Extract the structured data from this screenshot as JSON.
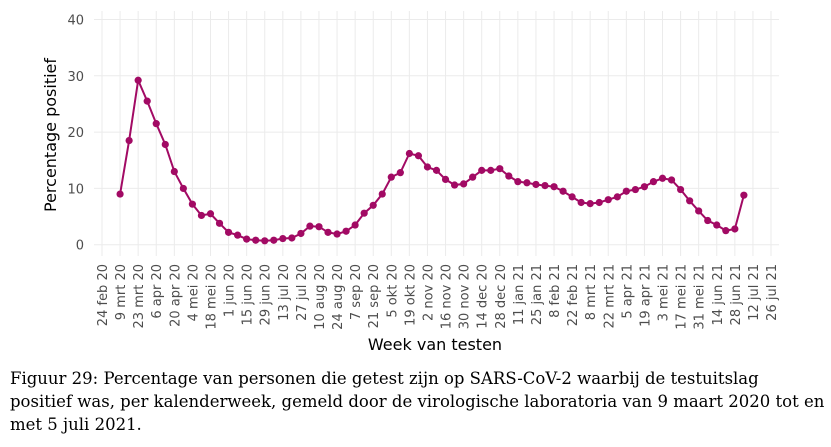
{
  "chart_data": {
    "type": "line",
    "xlabel": "Week van testen",
    "ylabel": "Percentage positief",
    "caption": [
      "Figuur 29: Percentage van personen die getest zijn op SARS-CoV-2 waarbij de testuitslag",
      "positief was, per kalenderweek, gemeld door de virologische laboratoria van 9 maart 2020 tot en",
      "met 5 juli 2021."
    ],
    "categories": [
      "24 feb 20",
      null,
      "9 mrt 20",
      null,
      "23 mrt 20",
      null,
      "6 apr 20",
      null,
      "20 apr 20",
      null,
      "4 mei 20",
      null,
      "18 mei 20",
      null,
      "1 jun 20",
      null,
      "15 jun 20",
      null,
      "29 jun 20",
      null,
      "13 jul 20",
      null,
      "27 jul 20",
      null,
      "10 aug 20",
      null,
      "24 aug 20",
      null,
      "7 sep 20",
      null,
      "21 sep 20",
      null,
      "5 okt 20",
      null,
      "19 okt 20",
      null,
      "2 nov 20",
      null,
      "16 nov 20",
      null,
      "30 nov 20",
      null,
      "14 dec 20",
      null,
      "28 dec 20",
      null,
      "11 jan 21",
      null,
      "25 jan 21",
      null,
      "8 feb 21",
      null,
      "22 feb 21",
      null,
      "8 mrt 21",
      null,
      "22 mrt 21",
      null,
      "5 apr 21",
      null,
      "19 apr 21",
      null,
      "3 mei 21",
      null,
      "17 mei 21",
      null,
      "31 mei 21",
      null,
      "14 jun 21",
      null,
      "28 jun 21",
      null,
      "12 jul 21",
      null,
      "26 jul 21"
    ],
    "series": [
      {
        "name": "Percentage positief",
        "color": "#a20a64",
        "values": [
          null,
          null,
          9,
          18.5,
          29.2,
          25.5,
          21.5,
          17.8,
          13,
          10,
          7.2,
          5.2,
          5.5,
          3.8,
          2.2,
          1.7,
          1.0,
          0.8,
          0.7,
          0.8,
          1.1,
          1.2,
          2.0,
          3.3,
          3.2,
          2.2,
          1.9,
          2.4,
          3.5,
          5.6,
          7.0,
          9.0,
          12.0,
          12.8,
          16.2,
          15.8,
          13.8,
          13.2,
          11.6,
          10.6,
          10.8,
          12.0,
          13.2,
          13.2,
          13.5,
          12.2,
          11.2,
          11.0,
          10.7,
          10.5,
          10.3,
          9.5,
          8.5,
          7.5,
          7.3,
          7.5,
          8.0,
          8.5,
          9.5,
          9.8,
          10.3,
          11.2,
          11.8,
          11.5,
          9.8,
          7.8,
          6.0,
          4.3,
          3.5,
          2.5,
          2.8,
          8.8,
          null,
          null,
          null
        ]
      }
    ],
    "ylim": [
      -2,
      41.5
    ],
    "yticks": [
      0,
      10,
      20,
      30,
      40
    ],
    "grid": true
  }
}
